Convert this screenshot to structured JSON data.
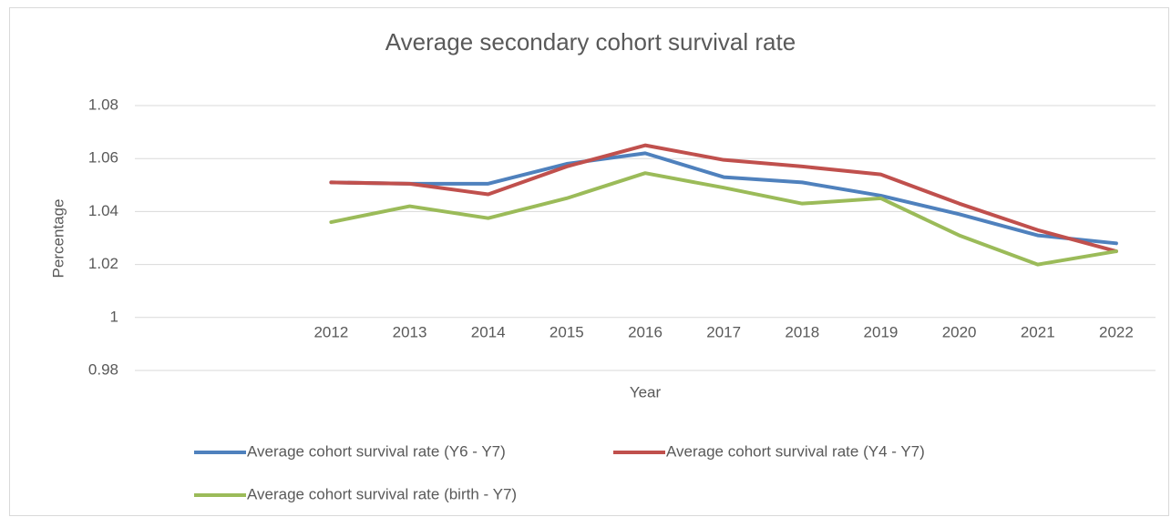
{
  "chart_data": {
    "type": "line",
    "title": "Average secondary cohort survival rate",
    "x_label": "Year",
    "y_label": "Percentage",
    "categories": [
      null,
      null,
      "2012",
      "2013",
      "2014",
      "2015",
      "2016",
      "2017",
      "2018",
      "2019",
      "2020",
      "2021",
      "2022"
    ],
    "series": [
      {
        "name": "Average cohort survival rate (Y6 - Y7)",
        "color": "#4f81bd",
        "values": [
          null,
          null,
          1.051,
          1.0505,
          1.0505,
          1.058,
          1.062,
          1.053,
          1.051,
          1.046,
          1.039,
          1.031,
          1.028
        ]
      },
      {
        "name": "Average cohort survival rate (Y4 - Y7)",
        "color": "#c0504d",
        "values": [
          null,
          null,
          1.051,
          1.0505,
          1.0465,
          1.057,
          1.065,
          1.0595,
          1.057,
          1.054,
          1.043,
          1.033,
          1.025
        ]
      },
      {
        "name": "Average cohort survival rate (birth - Y7)",
        "color": "#9bbb59",
        "values": [
          null,
          null,
          1.036,
          1.042,
          1.0375,
          1.045,
          1.0545,
          1.049,
          1.043,
          1.045,
          1.031,
          1.02,
          1.025
        ]
      }
    ],
    "ylim": [
      0.98,
      1.08
    ],
    "yticks": [
      0.98,
      1,
      1.02,
      1.04,
      1.06,
      1.08
    ],
    "grid": true,
    "legend": "bottom"
  }
}
